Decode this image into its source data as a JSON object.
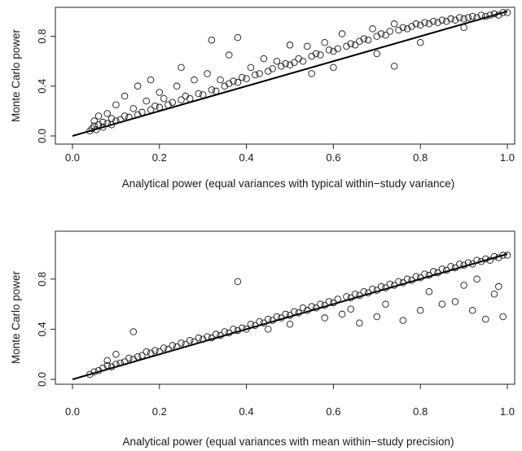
{
  "chart_data": [
    {
      "type": "scatter",
      "xlabel": "Analytical power (equal variances with typical within−study variance)",
      "ylabel": "Monte Carlo power",
      "xlim": [
        0.0,
        1.0
      ],
      "ylim": [
        0.0,
        1.0
      ],
      "xticks": [
        "0.0",
        "0.2",
        "0.4",
        "0.6",
        "0.8",
        "1.0"
      ],
      "yticks": [
        "0.0",
        "0.4",
        "0.8"
      ],
      "reference_line": {
        "from": [
          0.0,
          0.0
        ],
        "to": [
          1.0,
          1.0
        ]
      },
      "series": [
        {
          "points": [
            [
              0.04,
              0.04
            ],
            [
              0.045,
              0.06
            ],
            [
              0.05,
              0.08
            ],
            [
              0.05,
              0.12
            ],
            [
              0.055,
              0.05
            ],
            [
              0.06,
              0.09
            ],
            [
              0.06,
              0.16
            ],
            [
              0.07,
              0.07
            ],
            [
              0.07,
              0.11
            ],
            [
              0.08,
              0.1
            ],
            [
              0.08,
              0.18
            ],
            [
              0.09,
              0.14
            ],
            [
              0.09,
              0.09
            ],
            [
              0.1,
              0.12
            ],
            [
              0.1,
              0.25
            ],
            [
              0.11,
              0.13
            ],
            [
              0.12,
              0.16
            ],
            [
              0.12,
              0.32
            ],
            [
              0.13,
              0.15
            ],
            [
              0.14,
              0.22
            ],
            [
              0.15,
              0.17
            ],
            [
              0.15,
              0.4
            ],
            [
              0.16,
              0.19
            ],
            [
              0.17,
              0.28
            ],
            [
              0.18,
              0.21
            ],
            [
              0.18,
              0.45
            ],
            [
              0.19,
              0.24
            ],
            [
              0.2,
              0.23
            ],
            [
              0.2,
              0.35
            ],
            [
              0.21,
              0.3
            ],
            [
              0.22,
              0.25
            ],
            [
              0.23,
              0.27
            ],
            [
              0.24,
              0.4
            ],
            [
              0.25,
              0.29
            ],
            [
              0.25,
              0.55
            ],
            [
              0.26,
              0.32
            ],
            [
              0.27,
              0.3
            ],
            [
              0.28,
              0.45
            ],
            [
              0.29,
              0.34
            ],
            [
              0.3,
              0.33
            ],
            [
              0.31,
              0.5
            ],
            [
              0.32,
              0.37
            ],
            [
              0.32,
              0.77
            ],
            [
              0.33,
              0.36
            ],
            [
              0.34,
              0.45
            ],
            [
              0.35,
              0.4
            ],
            [
              0.36,
              0.42
            ],
            [
              0.36,
              0.65
            ],
            [
              0.37,
              0.44
            ],
            [
              0.38,
              0.43
            ],
            [
              0.38,
              0.79
            ],
            [
              0.39,
              0.47
            ],
            [
              0.4,
              0.46
            ],
            [
              0.41,
              0.55
            ],
            [
              0.42,
              0.49
            ],
            [
              0.43,
              0.5
            ],
            [
              0.44,
              0.62
            ],
            [
              0.45,
              0.52
            ],
            [
              0.46,
              0.54
            ],
            [
              0.47,
              0.6
            ],
            [
              0.48,
              0.56
            ],
            [
              0.49,
              0.58
            ],
            [
              0.5,
              0.57
            ],
            [
              0.5,
              0.73
            ],
            [
              0.51,
              0.59
            ],
            [
              0.52,
              0.62
            ],
            [
              0.53,
              0.6
            ],
            [
              0.54,
              0.72
            ],
            [
              0.55,
              0.64
            ],
            [
              0.56,
              0.66
            ],
            [
              0.57,
              0.65
            ],
            [
              0.58,
              0.75
            ],
            [
              0.59,
              0.69
            ],
            [
              0.6,
              0.68
            ],
            [
              0.61,
              0.7
            ],
            [
              0.62,
              0.82
            ],
            [
              0.63,
              0.72
            ],
            [
              0.64,
              0.74
            ],
            [
              0.65,
              0.73
            ],
            [
              0.66,
              0.76
            ],
            [
              0.67,
              0.78
            ],
            [
              0.68,
              0.77
            ],
            [
              0.69,
              0.86
            ],
            [
              0.7,
              0.8
            ],
            [
              0.71,
              0.82
            ],
            [
              0.72,
              0.81
            ],
            [
              0.73,
              0.84
            ],
            [
              0.74,
              0.56
            ],
            [
              0.74,
              0.9
            ],
            [
              0.75,
              0.85
            ],
            [
              0.76,
              0.87
            ],
            [
              0.77,
              0.86
            ],
            [
              0.78,
              0.88
            ],
            [
              0.79,
              0.9
            ],
            [
              0.8,
              0.89
            ],
            [
              0.81,
              0.91
            ],
            [
              0.82,
              0.9
            ],
            [
              0.83,
              0.92
            ],
            [
              0.84,
              0.91
            ],
            [
              0.85,
              0.93
            ],
            [
              0.86,
              0.92
            ],
            [
              0.87,
              0.94
            ],
            [
              0.88,
              0.93
            ],
            [
              0.89,
              0.95
            ],
            [
              0.9,
              0.94
            ],
            [
              0.91,
              0.95
            ],
            [
              0.92,
              0.96
            ],
            [
              0.93,
              0.95
            ],
            [
              0.94,
              0.97
            ],
            [
              0.95,
              0.96
            ],
            [
              0.96,
              0.97
            ],
            [
              0.97,
              0.98
            ],
            [
              0.98,
              0.97
            ],
            [
              0.99,
              0.99
            ],
            [
              1.0,
              0.99
            ],
            [
              0.6,
              0.55
            ],
            [
              0.7,
              0.66
            ],
            [
              0.8,
              0.75
            ],
            [
              0.9,
              0.87
            ],
            [
              0.55,
              0.5
            ]
          ]
        }
      ]
    },
    {
      "type": "scatter",
      "xlabel": "Analytical power (equal variances with mean within−study precision)",
      "ylabel": "Monte Carlo power",
      "xlim": [
        0.0,
        1.0
      ],
      "ylim": [
        0.0,
        1.0
      ],
      "xticks": [
        "0.0",
        "0.2",
        "0.4",
        "0.6",
        "0.8",
        "1.0"
      ],
      "yticks": [
        "0.0",
        "0.4",
        "0.8"
      ],
      "reference_line": {
        "from": [
          0.0,
          0.0
        ],
        "to": [
          1.0,
          1.0
        ]
      },
      "series": [
        {
          "points": [
            [
              0.04,
              0.04
            ],
            [
              0.05,
              0.06
            ],
            [
              0.06,
              0.07
            ],
            [
              0.07,
              0.09
            ],
            [
              0.08,
              0.11
            ],
            [
              0.08,
              0.15
            ],
            [
              0.09,
              0.1
            ],
            [
              0.1,
              0.12
            ],
            [
              0.1,
              0.2
            ],
            [
              0.11,
              0.13
            ],
            [
              0.12,
              0.14
            ],
            [
              0.13,
              0.17
            ],
            [
              0.14,
              0.16
            ],
            [
              0.14,
              0.38
            ],
            [
              0.15,
              0.18
            ],
            [
              0.16,
              0.19
            ],
            [
              0.17,
              0.22
            ],
            [
              0.18,
              0.21
            ],
            [
              0.19,
              0.23
            ],
            [
              0.2,
              0.22
            ],
            [
              0.21,
              0.25
            ],
            [
              0.22,
              0.24
            ],
            [
              0.23,
              0.27
            ],
            [
              0.24,
              0.26
            ],
            [
              0.25,
              0.29
            ],
            [
              0.26,
              0.28
            ],
            [
              0.27,
              0.31
            ],
            [
              0.28,
              0.3
            ],
            [
              0.29,
              0.33
            ],
            [
              0.3,
              0.32
            ],
            [
              0.31,
              0.34
            ],
            [
              0.32,
              0.33
            ],
            [
              0.33,
              0.36
            ],
            [
              0.34,
              0.35
            ],
            [
              0.35,
              0.38
            ],
            [
              0.36,
              0.37
            ],
            [
              0.37,
              0.4
            ],
            [
              0.38,
              0.78
            ],
            [
              0.38,
              0.39
            ],
            [
              0.39,
              0.41
            ],
            [
              0.4,
              0.4
            ],
            [
              0.41,
              0.44
            ],
            [
              0.42,
              0.43
            ],
            [
              0.43,
              0.46
            ],
            [
              0.44,
              0.45
            ],
            [
              0.45,
              0.48
            ],
            [
              0.46,
              0.47
            ],
            [
              0.47,
              0.5
            ],
            [
              0.48,
              0.49
            ],
            [
              0.49,
              0.52
            ],
            [
              0.5,
              0.51
            ],
            [
              0.51,
              0.54
            ],
            [
              0.52,
              0.53
            ],
            [
              0.53,
              0.57
            ],
            [
              0.54,
              0.55
            ],
            [
              0.55,
              0.58
            ],
            [
              0.56,
              0.57
            ],
            [
              0.57,
              0.6
            ],
            [
              0.58,
              0.59
            ],
            [
              0.59,
              0.62
            ],
            [
              0.6,
              0.61
            ],
            [
              0.61,
              0.64
            ],
            [
              0.62,
              0.52
            ],
            [
              0.63,
              0.66
            ],
            [
              0.64,
              0.65
            ],
            [
              0.65,
              0.68
            ],
            [
              0.66,
              0.67
            ],
            [
              0.67,
              0.7
            ],
            [
              0.68,
              0.69
            ],
            [
              0.69,
              0.72
            ],
            [
              0.7,
              0.71
            ],
            [
              0.71,
              0.74
            ],
            [
              0.72,
              0.73
            ],
            [
              0.73,
              0.76
            ],
            [
              0.74,
              0.75
            ],
            [
              0.75,
              0.78
            ],
            [
              0.76,
              0.77
            ],
            [
              0.77,
              0.8
            ],
            [
              0.78,
              0.79
            ],
            [
              0.79,
              0.82
            ],
            [
              0.8,
              0.81
            ],
            [
              0.81,
              0.84
            ],
            [
              0.82,
              0.83
            ],
            [
              0.83,
              0.86
            ],
            [
              0.84,
              0.85
            ],
            [
              0.85,
              0.88
            ],
            [
              0.86,
              0.87
            ],
            [
              0.87,
              0.9
            ],
            [
              0.88,
              0.89
            ],
            [
              0.89,
              0.92
            ],
            [
              0.9,
              0.91
            ],
            [
              0.91,
              0.93
            ],
            [
              0.92,
              0.92
            ],
            [
              0.93,
              0.95
            ],
            [
              0.94,
              0.94
            ],
            [
              0.95,
              0.96
            ],
            [
              0.96,
              0.95
            ],
            [
              0.97,
              0.98
            ],
            [
              0.98,
              0.97
            ],
            [
              0.99,
              0.99
            ],
            [
              1.0,
              0.99
            ],
            [
              0.66,
              0.45
            ],
            [
              0.7,
              0.5
            ],
            [
              0.76,
              0.47
            ],
            [
              0.8,
              0.55
            ],
            [
              0.85,
              0.6
            ],
            [
              0.88,
              0.62
            ],
            [
              0.92,
              0.55
            ],
            [
              0.95,
              0.48
            ],
            [
              0.98,
              0.74
            ],
            [
              0.99,
              0.5
            ],
            [
              0.97,
              0.68
            ],
            [
              0.9,
              0.75
            ],
            [
              0.82,
              0.7
            ],
            [
              0.72,
              0.6
            ],
            [
              0.64,
              0.56
            ],
            [
              0.58,
              0.49
            ],
            [
              0.5,
              0.44
            ],
            [
              0.45,
              0.4
            ],
            [
              0.93,
              0.8
            ]
          ]
        }
      ]
    }
  ]
}
